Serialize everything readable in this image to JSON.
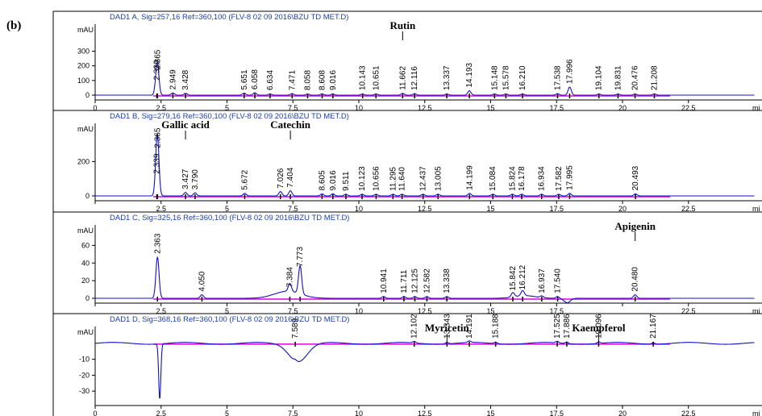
{
  "figure_label": "(b)",
  "chart_data": [
    {
      "type": "line",
      "header": "DAD1 A, Sig=257,16 Ref=360,100 (FLV-8 02 09 2016\\BZU TD MET.D)",
      "y_unit": "mAU",
      "y_ticks": [
        0,
        100,
        200,
        300
      ],
      "ylim": [
        -30,
        440
      ],
      "xlim": [
        0,
        24
      ],
      "x_ticks": [
        0,
        2.5,
        5,
        7.5,
        10,
        12.5,
        15,
        17.5,
        20,
        22.5
      ],
      "x_tick_labels": [
        "0",
        "2.5",
        "5",
        "7.5",
        "10",
        "12.5",
        "15",
        "17.5",
        "20",
        "22.5"
      ],
      "x_edge_label": "mi",
      "peaks": [
        {
          "rt": 2.339,
          "label": "2.339",
          "height": 80
        },
        {
          "rt": 2.365,
          "label": "2.365",
          "height": 150
        },
        {
          "rt": 2.949,
          "label": "2.949",
          "height": 15
        },
        {
          "rt": 3.428,
          "label": "3.428",
          "height": 12
        },
        {
          "rt": 5.651,
          "label": "5.651",
          "height": 14
        },
        {
          "rt": 6.058,
          "label": "6.058",
          "height": 16
        },
        {
          "rt": 6.634,
          "label": "6.634",
          "height": 8
        },
        {
          "rt": 7.471,
          "label": "7.471",
          "height": 10
        },
        {
          "rt": 8.058,
          "label": "8.058",
          "height": 8
        },
        {
          "rt": 8.608,
          "label": "8.608",
          "height": 8
        },
        {
          "rt": 9.016,
          "label": "9.016",
          "height": 8
        },
        {
          "rt": 10.143,
          "label": "10.143",
          "height": 8
        },
        {
          "rt": 10.651,
          "label": "10.651",
          "height": 8
        },
        {
          "rt": 11.662,
          "label": "11.662",
          "height": 12
        },
        {
          "rt": 12.116,
          "label": "12.116",
          "height": 10
        },
        {
          "rt": 13.337,
          "label": "13.337",
          "height": 8
        },
        {
          "rt": 14.193,
          "label": "14.193",
          "height": 30
        },
        {
          "rt": 15.148,
          "label": "15.148",
          "height": 8
        },
        {
          "rt": 15.578,
          "label": "15.578",
          "height": 8
        },
        {
          "rt": 16.21,
          "label": "16.210",
          "height": 8
        },
        {
          "rt": 17.538,
          "label": "17.538",
          "height": 10
        },
        {
          "rt": 17.996,
          "label": "17.996",
          "height": 55
        },
        {
          "rt": 19.104,
          "label": "19.104",
          "height": 8
        },
        {
          "rt": 19.831,
          "label": "19.831",
          "height": 8
        },
        {
          "rt": 20.476,
          "label": "20.476",
          "height": 8
        },
        {
          "rt": 21.208,
          "label": "21.208",
          "height": 8
        }
      ],
      "compounds": [
        {
          "name": "Rutin",
          "rt": 11.662
        }
      ]
    },
    {
      "type": "line",
      "header": "DAD1 B, Sig=279,16 Ref=360,100 (FLV-8 02 09 2016\\BZU TD MET.D)",
      "y_unit": "mAU",
      "y_ticks": [
        0,
        200
      ],
      "ylim": [
        -30,
        380
      ],
      "xlim": [
        0,
        24
      ],
      "x_ticks": [
        0,
        2.5,
        5,
        7.5,
        10,
        12.5,
        15,
        17.5,
        20,
        22.5
      ],
      "x_tick_labels": [
        "",
        "2.5",
        "5",
        "7.5",
        "10",
        "12.5",
        "15",
        "17.5",
        "20",
        "22.5"
      ],
      "x_edge_label": "mi",
      "peaks": [
        {
          "rt": 2.339,
          "label": "2.339",
          "height": 110
        },
        {
          "rt": 2.365,
          "label": "2.365",
          "height": 260
        },
        {
          "rt": 3.427,
          "label": "3.427",
          "height": 20
        },
        {
          "rt": 3.79,
          "label": "3.790",
          "height": 18
        },
        {
          "rt": 5.672,
          "label": "5.672",
          "height": 15
        },
        {
          "rt": 7.026,
          "label": "7.026",
          "height": 25
        },
        {
          "rt": 7.404,
          "label": "7.404",
          "height": 30
        },
        {
          "rt": 8.605,
          "label": "8.605",
          "height": 12
        },
        {
          "rt": 9.016,
          "label": "9.016",
          "height": 12
        },
        {
          "rt": 9.511,
          "label": "9.511",
          "height": 10
        },
        {
          "rt": 10.123,
          "label": "10.123",
          "height": 10
        },
        {
          "rt": 10.656,
          "label": "10.656",
          "height": 10
        },
        {
          "rt": 11.295,
          "label": "11.295",
          "height": 10
        },
        {
          "rt": 11.64,
          "label": "11.640",
          "height": 10
        },
        {
          "rt": 12.437,
          "label": "12.437",
          "height": 10
        },
        {
          "rt": 13.005,
          "label": "13.005",
          "height": 10
        },
        {
          "rt": 14.199,
          "label": "14.199",
          "height": 15
        },
        {
          "rt": 15.084,
          "label": "15.084",
          "height": 10
        },
        {
          "rt": 15.824,
          "label": "15.824",
          "height": 10
        },
        {
          "rt": 16.178,
          "label": "16.178",
          "height": 10
        },
        {
          "rt": 16.934,
          "label": "16.934",
          "height": 10
        },
        {
          "rt": 17.582,
          "label": "17.582",
          "height": 10
        },
        {
          "rt": 17.995,
          "label": "17.995",
          "height": 15
        },
        {
          "rt": 20.493,
          "label": "20.493",
          "height": 12
        }
      ],
      "compounds": [
        {
          "name": "Gallic acid",
          "rt": 3.427
        },
        {
          "name": "Catechin",
          "rt": 7.404
        }
      ]
    },
    {
      "type": "line",
      "header": "DAD1 C, Sig=325,16 Ref=360,100 (FLV-8 02 09 2016\\BZU TD MET.D)",
      "y_unit": "mAU",
      "y_ticks": [
        0,
        20,
        40,
        60
      ],
      "ylim": [
        -8,
        75
      ],
      "xlim": [
        0,
        24
      ],
      "x_ticks": [
        0,
        2.5,
        5,
        7.5,
        10,
        12.5,
        15,
        17.5,
        20,
        22.5
      ],
      "x_tick_labels": [
        "",
        "2.5",
        "5",
        "7.5",
        "10",
        "12.5",
        "15",
        "17.5",
        "",
        "22.5"
      ],
      "x_edge_label": "mi",
      "peaks": [
        {
          "rt": 2.363,
          "label": "2.363",
          "height": 47
        },
        {
          "rt": 4.05,
          "label": "4.050",
          "height": 4
        },
        {
          "rt": 7.384,
          "label": "7.384",
          "height": 9
        },
        {
          "rt": 7.773,
          "label": "7.773",
          "height": 32
        },
        {
          "rt": 10.941,
          "label": "10.941",
          "height": 2
        },
        {
          "rt": 11.711,
          "label": "11.711",
          "height": 2
        },
        {
          "rt": 12.125,
          "label": "12.125",
          "height": 2
        },
        {
          "rt": 12.582,
          "label": "12.582",
          "height": 2
        },
        {
          "rt": 13.338,
          "label": "13.338",
          "height": 2
        },
        {
          "rt": 15.842,
          "label": "15.842",
          "height": 5
        },
        {
          "rt": 16.212,
          "label": "16.212",
          "height": 6
        },
        {
          "rt": 16.937,
          "label": "16.937",
          "height": 2
        },
        {
          "rt": 17.54,
          "label": "17.540",
          "height": 2
        },
        {
          "rt": 20.48,
          "label": "20.480",
          "height": 4
        }
      ],
      "compounds": [
        {
          "name": "Apigenin",
          "rt": 20.48
        }
      ]
    },
    {
      "type": "line",
      "header": "DAD1 D, Sig=368,16 Ref=360,100 (FLV-8 02 09 2016\\BZU TD MET.D)",
      "y_unit": "mAU",
      "y_ticks": [
        -10,
        -20,
        -30
      ],
      "ylim": [
        -36,
        5
      ],
      "xlim": [
        0,
        24
      ],
      "x_ticks": [
        0,
        2.5,
        5,
        7.5,
        10,
        12.5,
        15,
        17.5,
        20,
        22.5
      ],
      "x_tick_labels": [
        "0",
        "2.5",
        "5",
        "7.5",
        "10",
        "12.5",
        "15",
        "17.5",
        "20",
        "22.5"
      ],
      "x_edge_label": "mi",
      "peaks": [
        {
          "rt": 7.589,
          "label": "7.589",
          "height": 1
        },
        {
          "rt": 12.102,
          "label": "12.102",
          "height": 1
        },
        {
          "rt": 13.343,
          "label": "13.343",
          "height": 1
        },
        {
          "rt": 14.191,
          "label": "14.191",
          "height": 1
        },
        {
          "rt": 15.188,
          "label": "15.188",
          "height": 1
        },
        {
          "rt": 17.525,
          "label": "17.525",
          "height": 1
        },
        {
          "rt": 17.886,
          "label": "17.886",
          "height": 1
        },
        {
          "rt": 19.096,
          "label": "19.096",
          "height": 1
        },
        {
          "rt": 21.167,
          "label": "21.167",
          "height": 1
        }
      ],
      "compounds": [
        {
          "name": "Myricetin",
          "rt": 13.343
        },
        {
          "name": "Kaempferol",
          "rt": 19.096
        }
      ]
    }
  ],
  "colors": {
    "trace": "#1010c8",
    "baseline": "#e000e0",
    "header": "#1a3fb0",
    "frame": "#000000"
  }
}
